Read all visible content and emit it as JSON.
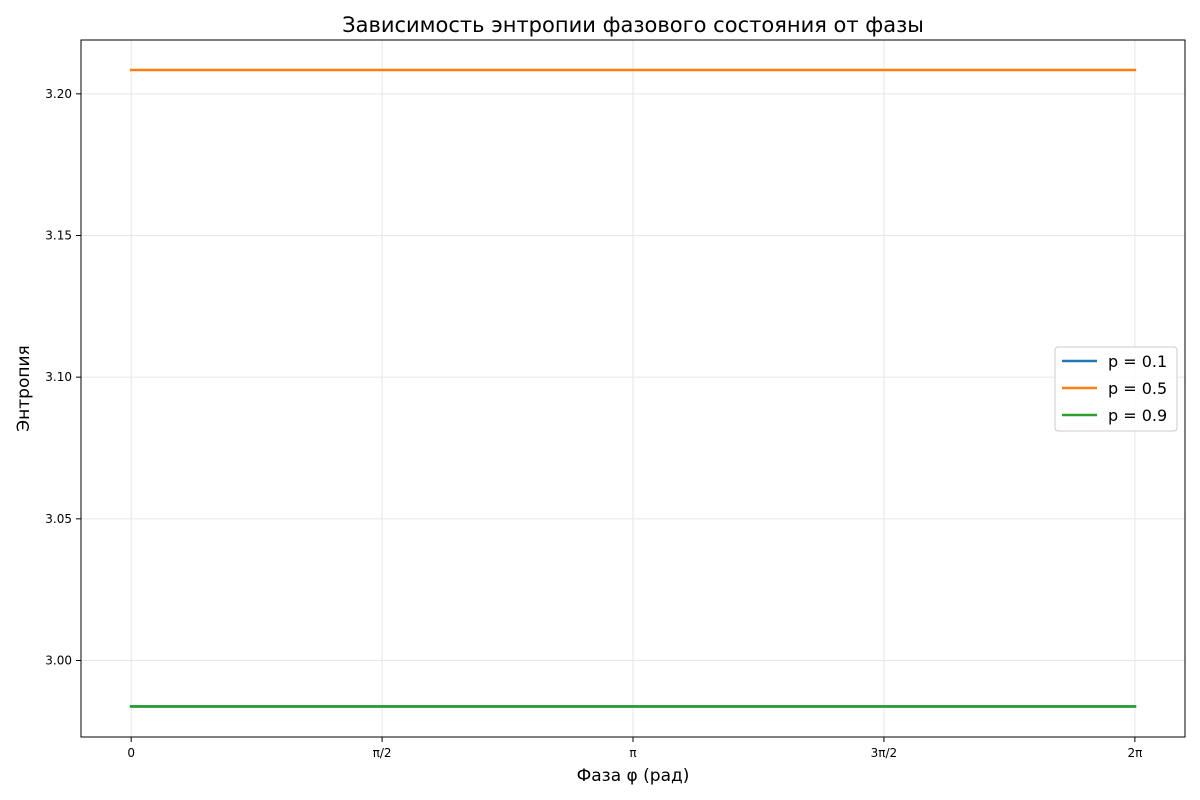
{
  "chart_data": {
    "type": "line",
    "title": "Зависимость энтропии фазового состояния от фазы",
    "xlabel": "Фаза φ (рад)",
    "ylabel": "Энтропия",
    "x_ticks": [
      {
        "value": 0,
        "label": "0"
      },
      {
        "value": 1.5707963,
        "label": "π/2"
      },
      {
        "value": 3.1415927,
        "label": "π"
      },
      {
        "value": 4.712389,
        "label": "3π/2"
      },
      {
        "value": 6.2831853,
        "label": "2π"
      }
    ],
    "y_ticks": [
      {
        "value": 3.0,
        "label": "3.00"
      },
      {
        "value": 3.05,
        "label": "3.05"
      },
      {
        "value": 3.1,
        "label": "3.10"
      },
      {
        "value": 3.15,
        "label": "3.15"
      },
      {
        "value": 3.2,
        "label": "3.20"
      }
    ],
    "xlim": [
      -0.314,
      6.597
    ],
    "ylim": [
      2.973,
      3.219
    ],
    "grid": true,
    "legend_position": "center-right",
    "series": [
      {
        "name": "p = 0.1",
        "color": "#1f77b4",
        "x": [
          0,
          6.2831853
        ],
        "y": [
          2.9838,
          2.9838
        ]
      },
      {
        "name": "p = 0.5",
        "color": "#ff7f0e",
        "x": [
          0,
          6.2831853
        ],
        "y": [
          3.2084,
          3.2084
        ]
      },
      {
        "name": "p = 0.9",
        "color": "#2ca02c",
        "x": [
          0,
          6.2831853
        ],
        "y": [
          2.9838,
          2.9838
        ]
      }
    ]
  }
}
